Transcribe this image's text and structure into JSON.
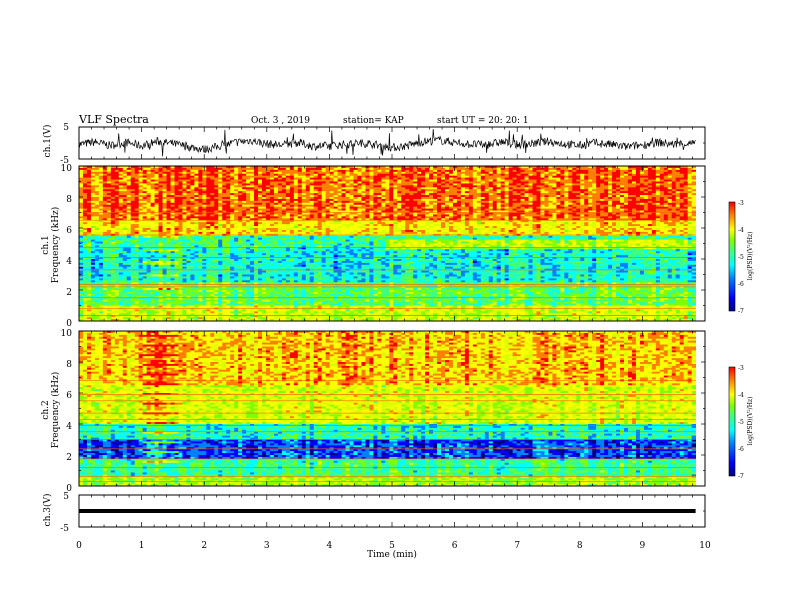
{
  "header": {
    "title": "VLF Spectra",
    "date": "Oct. 3  , 2019",
    "station": "station= KAP",
    "start_ut": "start  UT =   20: 20: 1"
  },
  "colormap": [
    "#00007f",
    "#0000ff",
    "#0080ff",
    "#00ffff",
    "#40ff80",
    "#80ff00",
    "#d8ff00",
    "#ffff00",
    "#ff8000",
    "#ff0000"
  ],
  "chart_data": [
    {
      "id": "ch1-waveform",
      "type": "line",
      "ylabel": "ch.1(V)",
      "ylim": [
        -5,
        5
      ],
      "yticks": [
        -5,
        5
      ],
      "xlim": [
        0,
        10
      ],
      "x": [
        0,
        0.25,
        0.5,
        0.75,
        1.0,
        1.25,
        1.5,
        1.75,
        2.0,
        2.25,
        2.5,
        2.75,
        3.0,
        3.25,
        3.5,
        3.75,
        4.0,
        4.25,
        4.5,
        4.75,
        5.0,
        5.25,
        5.5,
        5.75,
        6.0,
        6.25,
        6.5,
        6.75,
        7.0,
        7.25,
        7.5,
        7.75,
        8.0,
        8.25,
        8.5,
        8.75,
        9.0,
        9.25,
        9.5,
        9.75,
        9.85
      ],
      "y": [
        -0.5,
        0.3,
        -0.8,
        0.2,
        -0.9,
        0.5,
        -0.2,
        -1.2,
        -2.0,
        -1.0,
        0.2,
        0.8,
        -0.3,
        -0.6,
        0.1,
        -1.0,
        -0.9,
        -0.4,
        0.0,
        -0.5,
        -1.5,
        -0.8,
        0.4,
        0.9,
        0.2,
        -0.4,
        -0.6,
        0.3,
        -0.5,
        -0.2,
        0.5,
        -0.3,
        -0.8,
        0.1,
        -0.5,
        -1.2,
        -0.6,
        0.2,
        -0.4,
        -0.1,
        -0.3
      ]
    },
    {
      "id": "ch1-spectrogram",
      "type": "heatmap",
      "ylabel": "ch.1\nFrequency (kHz)",
      "ylim": [
        0,
        10
      ],
      "yticks": [
        0,
        2,
        4,
        6,
        8,
        10
      ],
      "xlim": [
        0,
        10
      ],
      "data_tmax": 9.85,
      "colorbar": {
        "label": "log(PSD)(V²/Hz)",
        "range": [
          -7,
          -3
        ],
        "ticks": [
          -7,
          -6,
          -5,
          -4,
          -3
        ]
      }
    },
    {
      "id": "ch2-spectrogram",
      "type": "heatmap",
      "ylabel": "ch.2\nFrequency (kHz)",
      "ylim": [
        0,
        10
      ],
      "yticks": [
        0,
        2,
        4,
        6,
        8,
        10
      ],
      "xlim": [
        0,
        10
      ],
      "data_tmax": 9.85,
      "colorbar": {
        "label": "log(PSD)(V²/Hz)",
        "range": [
          -7,
          -3
        ],
        "ticks": [
          -7,
          -6,
          -5,
          -4,
          -3
        ]
      }
    },
    {
      "id": "ch3-waveform",
      "type": "line",
      "ylabel": "ch.3(V)",
      "ylim": [
        -5,
        5
      ],
      "yticks": [
        -5,
        5
      ],
      "xlim": [
        0,
        10
      ],
      "x": [
        0,
        9.85
      ],
      "y": [
        0,
        0
      ],
      "xlabel": "Time (min)",
      "xticks": [
        0,
        1,
        2,
        3,
        4,
        5,
        6,
        7,
        8,
        9,
        10
      ]
    }
  ]
}
